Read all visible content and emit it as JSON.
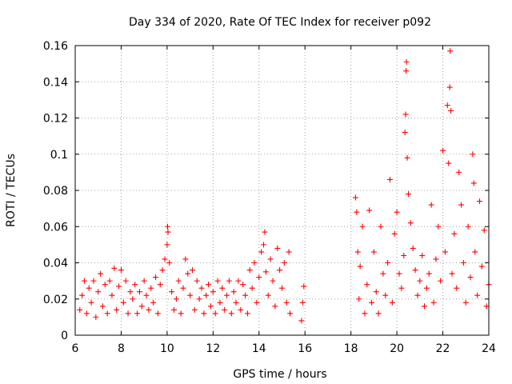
{
  "chart_data": {
    "type": "scatter",
    "title": "Day 334 of 2020, Rate Of TEC Index for receiver p092",
    "xlabel": "GPS time / hours",
    "ylabel": "ROTI / TECUs",
    "xlim": [
      6,
      24
    ],
    "ylim": [
      0,
      0.16
    ],
    "xticks": [
      6,
      8,
      10,
      12,
      14,
      16,
      18,
      20,
      22,
      24
    ],
    "xtick_labels": [
      "6",
      "8",
      "10",
      "12",
      "14",
      "16",
      "18",
      "20",
      "22",
      "24"
    ],
    "yticks": [
      0,
      0.02,
      0.04,
      0.06,
      0.08,
      0.1,
      0.12,
      0.14,
      0.16
    ],
    "ytick_labels": [
      "0",
      "0.02",
      "0.04",
      "0.06",
      "0.08",
      "0.1",
      "0.12",
      "0.14",
      "0.16"
    ],
    "grid": true,
    "marker": "+",
    "color": "#ff0000",
    "series": [
      {
        "name": "ROTI",
        "points": [
          [
            6.2,
            0.014
          ],
          [
            6.3,
            0.022
          ],
          [
            6.4,
            0.03
          ],
          [
            6.5,
            0.012
          ],
          [
            6.6,
            0.026
          ],
          [
            6.7,
            0.018
          ],
          [
            6.8,
            0.03
          ],
          [
            6.9,
            0.01
          ],
          [
            7.0,
            0.024
          ],
          [
            7.1,
            0.034
          ],
          [
            7.2,
            0.016
          ],
          [
            7.3,
            0.028
          ],
          [
            7.4,
            0.012
          ],
          [
            7.5,
            0.03
          ],
          [
            7.6,
            0.022
          ],
          [
            7.7,
            0.037
          ],
          [
            7.8,
            0.014
          ],
          [
            7.9,
            0.027
          ],
          [
            8.0,
            0.036
          ],
          [
            8.1,
            0.018
          ],
          [
            8.2,
            0.03
          ],
          [
            8.3,
            0.012
          ],
          [
            8.4,
            0.024
          ],
          [
            8.5,
            0.02
          ],
          [
            8.6,
            0.028
          ],
          [
            8.7,
            0.012
          ],
          [
            8.8,
            0.024
          ],
          [
            8.9,
            0.016
          ],
          [
            9.0,
            0.03
          ],
          [
            9.1,
            0.022
          ],
          [
            9.2,
            0.014
          ],
          [
            9.3,
            0.026
          ],
          [
            9.4,
            0.018
          ],
          [
            9.5,
            0.032
          ],
          [
            9.6,
            0.012
          ],
          [
            9.7,
            0.028
          ],
          [
            9.8,
            0.036
          ],
          [
            9.9,
            0.042
          ],
          [
            10.0,
            0.05
          ],
          [
            10.02,
            0.06
          ],
          [
            10.04,
            0.057
          ],
          [
            10.1,
            0.04
          ],
          [
            10.2,
            0.024
          ],
          [
            10.3,
            0.014
          ],
          [
            10.4,
            0.02
          ],
          [
            10.5,
            0.03
          ],
          [
            10.6,
            0.012
          ],
          [
            10.7,
            0.026
          ],
          [
            10.8,
            0.042
          ],
          [
            10.9,
            0.034
          ],
          [
            11.0,
            0.022
          ],
          [
            11.1,
            0.036
          ],
          [
            11.2,
            0.014
          ],
          [
            11.3,
            0.03
          ],
          [
            11.4,
            0.02
          ],
          [
            11.5,
            0.026
          ],
          [
            11.6,
            0.012
          ],
          [
            11.7,
            0.022
          ],
          [
            11.8,
            0.028
          ],
          [
            11.9,
            0.016
          ],
          [
            12.0,
            0.024
          ],
          [
            12.1,
            0.012
          ],
          [
            12.2,
            0.03
          ],
          [
            12.3,
            0.018
          ],
          [
            12.4,
            0.026
          ],
          [
            12.5,
            0.014
          ],
          [
            12.6,
            0.022
          ],
          [
            12.7,
            0.03
          ],
          [
            12.8,
            0.012
          ],
          [
            12.9,
            0.024
          ],
          [
            13.0,
            0.018
          ],
          [
            13.1,
            0.03
          ],
          [
            13.2,
            0.014
          ],
          [
            13.3,
            0.028
          ],
          [
            13.4,
            0.022
          ],
          [
            13.5,
            0.012
          ],
          [
            13.6,
            0.036
          ],
          [
            13.7,
            0.026
          ],
          [
            13.8,
            0.04
          ],
          [
            13.9,
            0.018
          ],
          [
            14.0,
            0.032
          ],
          [
            14.1,
            0.046
          ],
          [
            14.2,
            0.05
          ],
          [
            14.25,
            0.057
          ],
          [
            14.3,
            0.035
          ],
          [
            14.4,
            0.022
          ],
          [
            14.5,
            0.042
          ],
          [
            14.6,
            0.03
          ],
          [
            14.7,
            0.016
          ],
          [
            14.8,
            0.048
          ],
          [
            14.9,
            0.036
          ],
          [
            15.0,
            0.026
          ],
          [
            15.1,
            0.04
          ],
          [
            15.2,
            0.018
          ],
          [
            15.3,
            0.046
          ],
          [
            15.35,
            0.012
          ],
          [
            15.85,
            0.008
          ],
          [
            15.9,
            0.018
          ],
          [
            15.95,
            0.027
          ],
          [
            18.2,
            0.076
          ],
          [
            18.25,
            0.068
          ],
          [
            18.3,
            0.046
          ],
          [
            18.35,
            0.02
          ],
          [
            18.4,
            0.038
          ],
          [
            18.5,
            0.06
          ],
          [
            18.6,
            0.012
          ],
          [
            18.7,
            0.028
          ],
          [
            18.8,
            0.069
          ],
          [
            18.9,
            0.018
          ],
          [
            19.0,
            0.046
          ],
          [
            19.1,
            0.024
          ],
          [
            19.2,
            0.012
          ],
          [
            19.3,
            0.06
          ],
          [
            19.4,
            0.034
          ],
          [
            19.5,
            0.022
          ],
          [
            19.6,
            0.04
          ],
          [
            19.7,
            0.086
          ],
          [
            19.8,
            0.018
          ],
          [
            19.9,
            0.056
          ],
          [
            20.0,
            0.068
          ],
          [
            20.1,
            0.034
          ],
          [
            20.2,
            0.026
          ],
          [
            20.3,
            0.044
          ],
          [
            20.35,
            0.112
          ],
          [
            20.38,
            0.122
          ],
          [
            20.4,
            0.146
          ],
          [
            20.42,
            0.151
          ],
          [
            20.45,
            0.098
          ],
          [
            20.5,
            0.078
          ],
          [
            20.6,
            0.062
          ],
          [
            20.7,
            0.048
          ],
          [
            20.8,
            0.036
          ],
          [
            20.9,
            0.022
          ],
          [
            21.0,
            0.03
          ],
          [
            21.1,
            0.044
          ],
          [
            21.2,
            0.016
          ],
          [
            21.3,
            0.026
          ],
          [
            21.4,
            0.034
          ],
          [
            21.5,
            0.072
          ],
          [
            21.6,
            0.018
          ],
          [
            21.7,
            0.042
          ],
          [
            21.8,
            0.06
          ],
          [
            21.9,
            0.03
          ],
          [
            22.0,
            0.102
          ],
          [
            22.1,
            0.046
          ],
          [
            22.2,
            0.127
          ],
          [
            22.25,
            0.095
          ],
          [
            22.3,
            0.137
          ],
          [
            22.32,
            0.157
          ],
          [
            22.35,
            0.124
          ],
          [
            22.4,
            0.034
          ],
          [
            22.5,
            0.056
          ],
          [
            22.6,
            0.026
          ],
          [
            22.7,
            0.09
          ],
          [
            22.8,
            0.072
          ],
          [
            22.9,
            0.04
          ],
          [
            23.0,
            0.018
          ],
          [
            23.1,
            0.06
          ],
          [
            23.2,
            0.032
          ],
          [
            23.3,
            0.1
          ],
          [
            23.35,
            0.084
          ],
          [
            23.4,
            0.046
          ],
          [
            23.5,
            0.022
          ],
          [
            23.6,
            0.074
          ],
          [
            23.7,
            0.038
          ],
          [
            23.8,
            0.058
          ],
          [
            23.9,
            0.016
          ],
          [
            24.0,
            0.028
          ]
        ]
      }
    ]
  }
}
